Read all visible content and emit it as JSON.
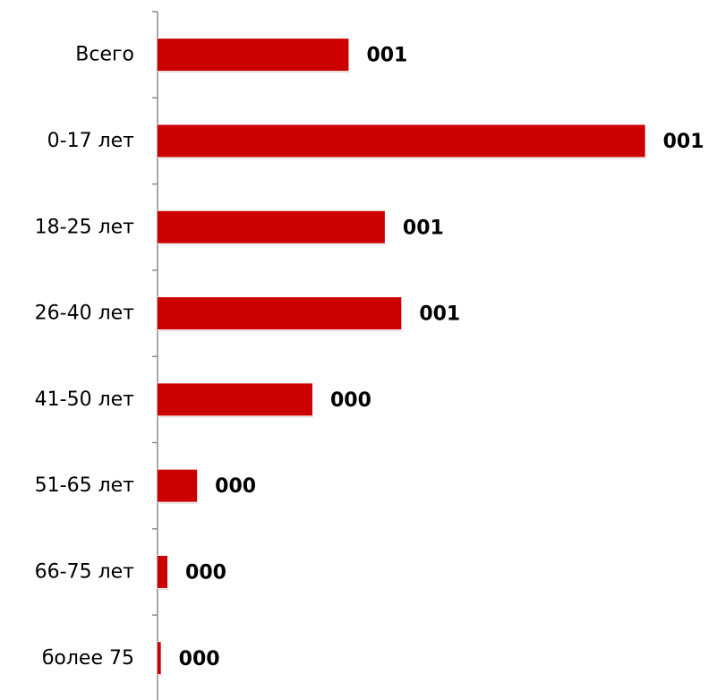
{
  "chart_data": {
    "type": "bar",
    "orientation": "horizontal",
    "title": "",
    "xlabel": "",
    "ylabel": "",
    "categories": [
      "Всего",
      "0-17 лет",
      "18-25 лет",
      "26-40 лет",
      "41-50 лет",
      "51-65 лет",
      "66-75 лет",
      "более 75"
    ],
    "values": [
      0.58,
      1.48,
      0.69,
      0.74,
      0.47,
      0.12,
      0.03,
      0.01
    ],
    "value_labels": [
      "001",
      "001",
      "001",
      "001",
      "000",
      "000",
      "000",
      "000"
    ],
    "xlim": [
      0,
      1.5
    ],
    "grid": false,
    "legend": "none",
    "colors": {
      "bar": "#cc0000",
      "bar_highlight": "#ffffff",
      "bar_shadow": "#d8d8d8",
      "axis": "#8c8c8c",
      "text": "#000000"
    }
  }
}
